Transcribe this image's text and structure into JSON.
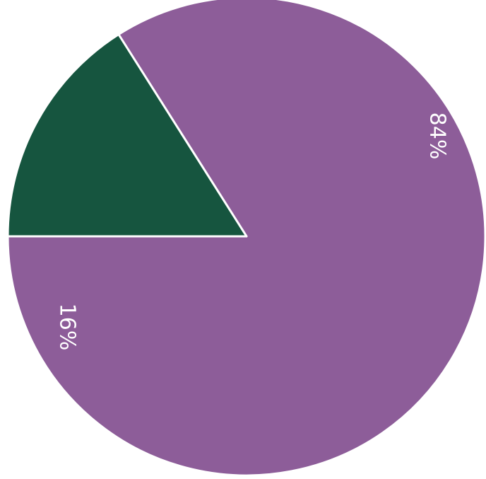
{
  "chart_data": {
    "type": "pie",
    "slices": [
      {
        "label": "84%",
        "value": 84,
        "color": "#8d5d99"
      },
      {
        "label": "16%",
        "value": 16,
        "color": "#16553f"
      }
    ],
    "legend": "none",
    "grid": false
  }
}
